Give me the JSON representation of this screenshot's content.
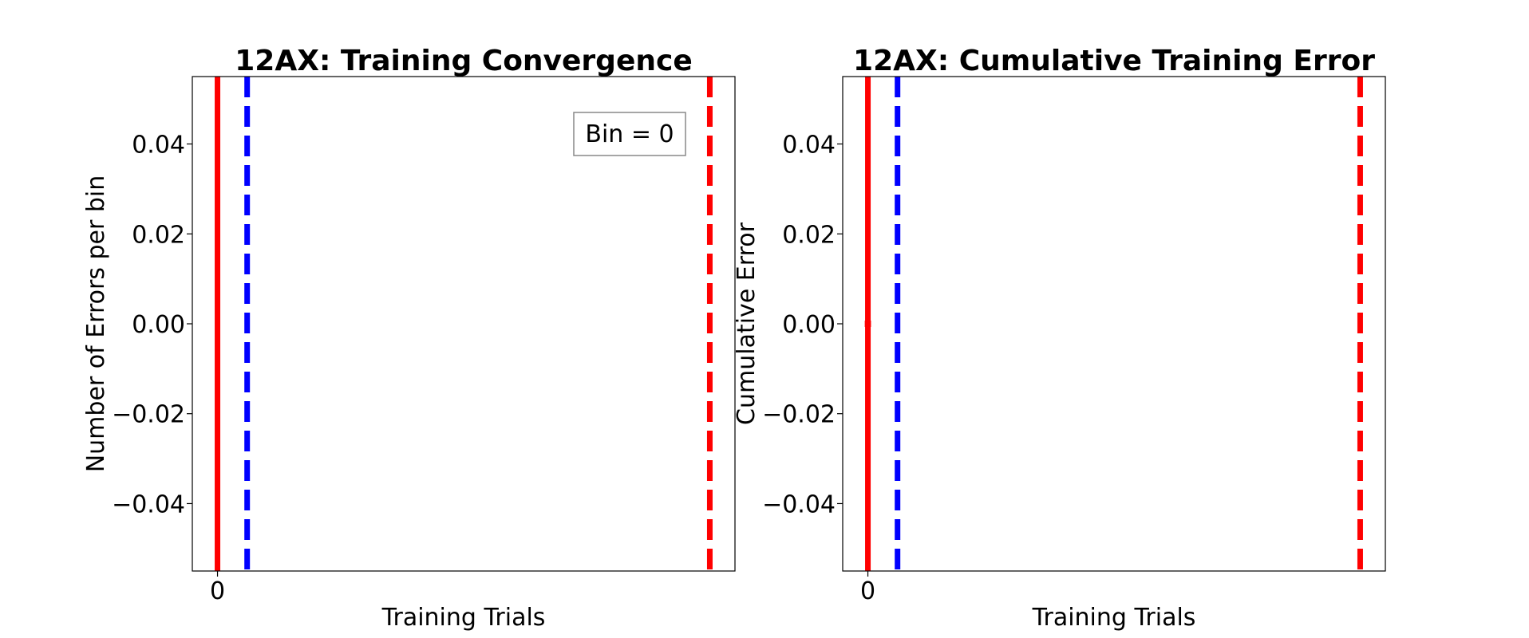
{
  "chart_data": [
    {
      "type": "line",
      "title": "12AX: Training Convergence",
      "xlabel": "Training Trials",
      "ylabel": "Number of Errors per bin",
      "xlim": [
        -0.45,
        9.25
      ],
      "ylim": [
        -0.055,
        0.055
      ],
      "x_ticks": [
        {
          "value": 0,
          "label": "0"
        }
      ],
      "y_ticks": [
        {
          "value": 0.04,
          "label": "0.04"
        },
        {
          "value": 0.02,
          "label": "0.02"
        },
        {
          "value": 0.0,
          "label": "0.00"
        },
        {
          "value": -0.02,
          "label": "−0.02"
        },
        {
          "value": -0.04,
          "label": "−0.04"
        }
      ],
      "series": [],
      "vlines": [
        {
          "x": 0,
          "color": "#ff0000",
          "style": "solid"
        },
        {
          "x": 0.53,
          "color": "#0000ff",
          "style": "dashed"
        },
        {
          "x": 8.8,
          "color": "#ff0000",
          "style": "dashed"
        }
      ],
      "legend": {
        "text": "Bin = 0",
        "position": "upper-right"
      },
      "grid": false
    },
    {
      "type": "line",
      "title": "12AX: Cumulative Training Error",
      "xlabel": "Training Trials",
      "ylabel": "Cumulative Error",
      "xlim": [
        -0.45,
        9.25
      ],
      "ylim": [
        -0.055,
        0.055
      ],
      "x_ticks": [
        {
          "value": 0,
          "label": "0"
        }
      ],
      "y_ticks": [
        {
          "value": 0.04,
          "label": "0.04"
        },
        {
          "value": 0.02,
          "label": "0.02"
        },
        {
          "value": 0.0,
          "label": "0.00"
        },
        {
          "value": -0.02,
          "label": "−0.02"
        },
        {
          "value": -0.04,
          "label": "−0.04"
        }
      ],
      "series": [
        {
          "x": [
            0
          ],
          "y": [
            0
          ],
          "color": "#ff0000",
          "marker": "square"
        }
      ],
      "vlines": [
        {
          "x": 0,
          "color": "#ff0000",
          "style": "solid"
        },
        {
          "x": 0.53,
          "color": "#0000ff",
          "style": "dashed"
        },
        {
          "x": 8.8,
          "color": "#ff0000",
          "style": "dashed"
        }
      ],
      "grid": false
    }
  ]
}
